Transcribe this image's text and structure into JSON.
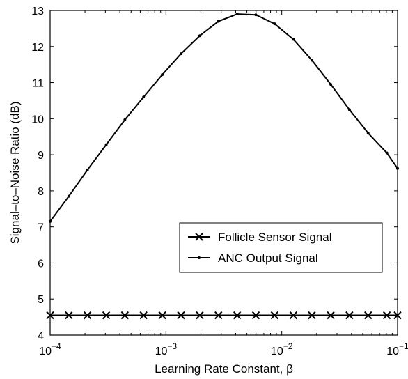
{
  "chart_data": {
    "type": "line",
    "xlabel": "Learning Rate Constant, β",
    "ylabel": "Signal–to–Noise Ratio (dB)",
    "xscale": "log",
    "xlim": [
      0.0001,
      0.1
    ],
    "ylim": [
      4,
      13
    ],
    "xticks": [
      {
        "value": 0.0001,
        "base": "10",
        "exp": "−4"
      },
      {
        "value": 0.001,
        "base": "10",
        "exp": "−3"
      },
      {
        "value": 0.01,
        "base": "10",
        "exp": "−2"
      },
      {
        "value": 0.1,
        "base": "10",
        "exp": "−1"
      }
    ],
    "yticks": [
      4,
      5,
      6,
      7,
      8,
      9,
      10,
      11,
      12,
      13
    ],
    "grid": false,
    "legend_position": "lower-right",
    "x": [
      0.0001,
      0.000145,
      0.00021,
      0.000305,
      0.000442,
      0.000641,
      0.00093,
      0.00135,
      0.00196,
      0.00284,
      0.00412,
      0.00598,
      0.00867,
      0.0126,
      0.0182,
      0.0265,
      0.0384,
      0.0557,
      0.0808,
      0.1
    ],
    "series": [
      {
        "name": "Follicle Sensor Signal",
        "marker": "x",
        "values": [
          4.55,
          4.55,
          4.55,
          4.55,
          4.55,
          4.55,
          4.55,
          4.55,
          4.55,
          4.55,
          4.55,
          4.55,
          4.55,
          4.55,
          4.55,
          4.55,
          4.55,
          4.55,
          4.55,
          4.55
        ]
      },
      {
        "name": "ANC Output Signal",
        "marker": "dot",
        "values": [
          7.15,
          7.85,
          8.58,
          9.28,
          9.97,
          10.6,
          11.22,
          11.8,
          12.3,
          12.7,
          12.9,
          12.88,
          12.63,
          12.2,
          11.62,
          10.95,
          10.25,
          9.6,
          9.05,
          8.62
        ]
      }
    ]
  }
}
